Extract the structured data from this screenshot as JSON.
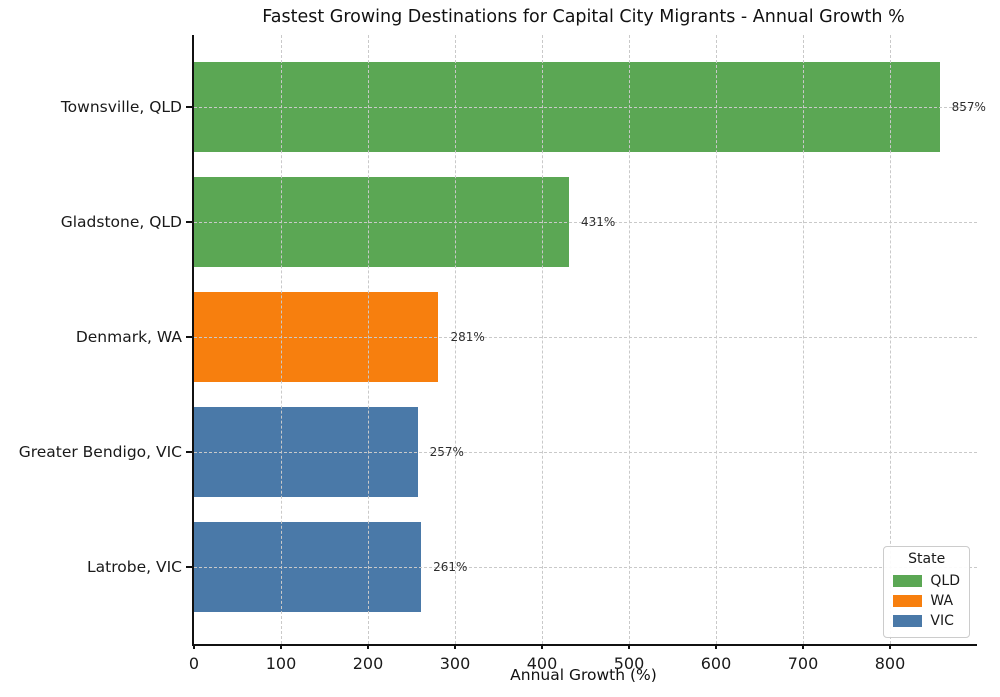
{
  "chart_data": {
    "type": "bar",
    "orientation": "horizontal",
    "title": "Fastest Growing Destinations for Capital City Migrants - Annual Growth %",
    "xlabel": "Annual Growth (%)",
    "ylabel": "",
    "categories": [
      "Townsville, QLD",
      "Gladstone, QLD",
      "Denmark, WA",
      "Greater Bendigo, VIC",
      "Latrobe, VIC"
    ],
    "values": [
      857,
      431,
      281,
      257,
      261
    ],
    "series_group": [
      "QLD",
      "QLD",
      "WA",
      "VIC",
      "VIC"
    ],
    "bar_labels": [
      "857%",
      "431%",
      "281%",
      "257%",
      "261%"
    ],
    "x_ticks": [
      0,
      100,
      200,
      300,
      400,
      500,
      600,
      700,
      800
    ],
    "x_tick_labels": [
      "0",
      "100",
      "200",
      "300",
      "400",
      "500",
      "600",
      "700",
      "800"
    ],
    "xlim": [
      0,
      900
    ],
    "grid": "dashed-both-axes",
    "background": "#ffffff",
    "group_colors": {
      "QLD": "#5ba754",
      "WA": "#f77f0e",
      "VIC": "#4a79a8"
    },
    "legend": {
      "title": "State",
      "position": "lower-right",
      "entries": [
        {
          "label": "QLD",
          "color": "#5ba754"
        },
        {
          "label": "WA",
          "color": "#f77f0e"
        },
        {
          "label": "VIC",
          "color": "#4a79a8"
        }
      ]
    }
  }
}
